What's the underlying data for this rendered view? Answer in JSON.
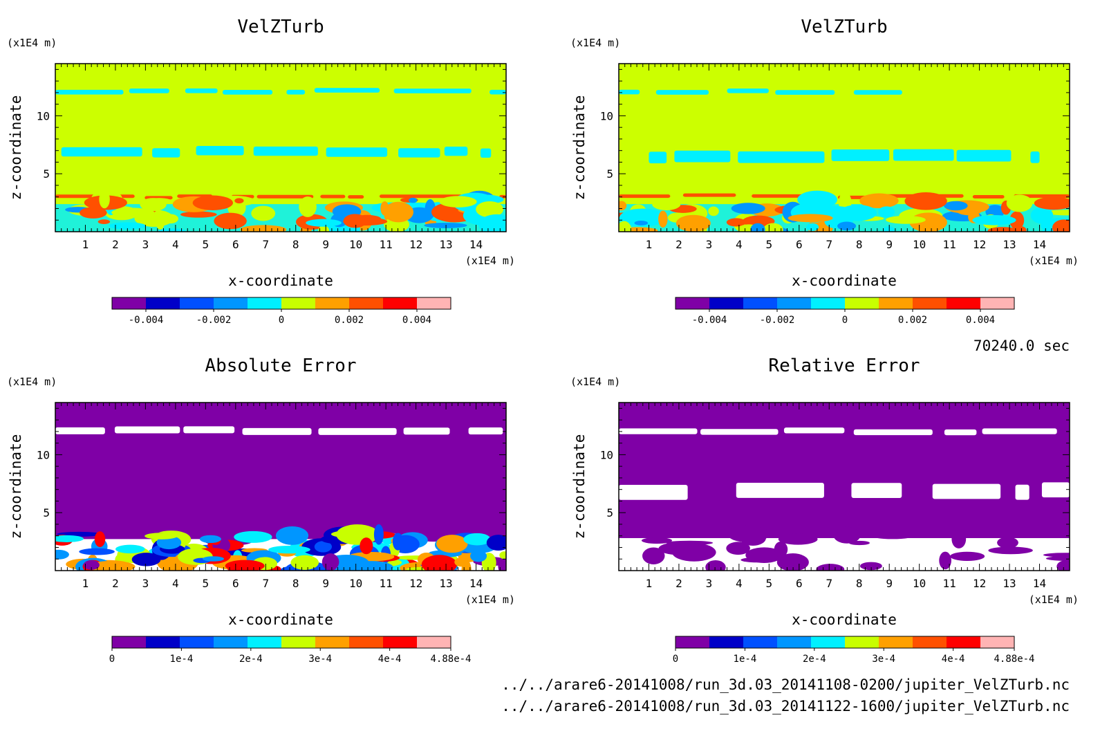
{
  "chart_data": [
    {
      "type": "heatmap",
      "title": "VelZTurb",
      "xlabel": "x-coordinate",
      "ylabel": "z-coordinate",
      "x_unit": "(x1E4 m)",
      "y_unit": "(x1E4 m)",
      "xlim": [
        0,
        15
      ],
      "ylim": [
        0,
        14.5
      ],
      "x_ticks": [
        "1",
        "2",
        "3",
        "4",
        "5",
        "6",
        "7",
        "8",
        "9",
        "10",
        "11",
        "12",
        "13",
        "14"
      ],
      "y_ticks": [
        "5",
        "10"
      ],
      "colorbar": {
        "levels": [
          -0.005,
          -0.004,
          -0.003,
          -0.002,
          -0.001,
          0,
          0.001,
          0.002,
          0.003,
          0.004,
          0.005
        ],
        "colors": [
          "#7f00a6",
          "#0000c8",
          "#0050ff",
          "#0096ff",
          "#00f0ff",
          "#c8ff00",
          "#ffa000",
          "#ff5000",
          "#ff0000",
          "#ffb4b4"
        ],
        "tick_values": [
          -0.004,
          -0.002,
          0,
          0.002,
          0.004
        ],
        "tick_labels": [
          "-0.004",
          "-0.002",
          "0",
          "0.002",
          "0.004"
        ]
      },
      "field": {
        "background": "#ccff00",
        "regions": [
          {
            "desc": "thin negative layer near top",
            "x": [
              0,
              15
            ],
            "z": [
              11.9,
              12.3
            ],
            "color": "#00f0ff"
          },
          {
            "desc": "patchy negative layer",
            "x": [
              0.2,
              14.5
            ],
            "z": [
              6.5,
              7.3
            ],
            "color": "#00f0ff"
          },
          {
            "desc": "positive band",
            "x": [
              0,
              15
            ],
            "z": [
              2.9,
              3.2
            ],
            "color": "#ff5000"
          },
          {
            "desc": "turbulent negative lower layer",
            "x": [
              0,
              15
            ],
            "z": [
              0,
              2.8
            ],
            "color": "#00f0ff"
          }
        ]
      }
    },
    {
      "type": "heatmap",
      "title": "VelZTurb",
      "xlabel": "x-coordinate",
      "ylabel": "z-coordinate",
      "x_unit": "(x1E4 m)",
      "y_unit": "(x1E4 m)",
      "xlim": [
        0,
        15
      ],
      "ylim": [
        0,
        14.5
      ],
      "x_ticks": [
        "1",
        "2",
        "3",
        "4",
        "5",
        "6",
        "7",
        "8",
        "9",
        "10",
        "11",
        "12",
        "13",
        "14"
      ],
      "y_ticks": [
        "5",
        "10"
      ],
      "colorbar": {
        "levels": [
          -0.005,
          -0.004,
          -0.003,
          -0.002,
          -0.001,
          0,
          0.001,
          0.002,
          0.003,
          0.004,
          0.005
        ],
        "colors": [
          "#7f00a6",
          "#0000c8",
          "#0050ff",
          "#0096ff",
          "#00f0ff",
          "#c8ff00",
          "#ffa000",
          "#ff5000",
          "#ff0000",
          "#ffb4b4"
        ],
        "tick_values": [
          -0.004,
          -0.002,
          0,
          0.002,
          0.004
        ],
        "tick_labels": [
          "-0.004",
          "-0.002",
          "0",
          "0.002",
          "0.004"
        ]
      },
      "field": {
        "background": "#ccff00",
        "regions": [
          {
            "desc": "thin layer near top",
            "x": [
              0,
              9.5
            ],
            "z": [
              11.9,
              12.3
            ],
            "color": "#00f0ff"
          },
          {
            "desc": "patches mid",
            "x": [
              1,
              14
            ],
            "z": [
              6,
              7
            ],
            "color": "#00f0ff"
          },
          {
            "desc": "positive band",
            "x": [
              0,
              15
            ],
            "z": [
              2.9,
              3.2
            ],
            "color": "#ff5000"
          },
          {
            "desc": "turbulent lower layer",
            "x": [
              0,
              15
            ],
            "z": [
              0,
              2.8
            ],
            "color": "#00f0ff"
          }
        ]
      }
    },
    {
      "type": "heatmap",
      "title": "Absolute Error",
      "xlabel": "x-coordinate",
      "ylabel": "z-coordinate",
      "x_unit": "(x1E4 m)",
      "y_unit": "(x1E4 m)",
      "xlim": [
        0,
        15
      ],
      "ylim": [
        0,
        14.5
      ],
      "x_ticks": [
        "1",
        "2",
        "3",
        "4",
        "5",
        "6",
        "7",
        "8",
        "9",
        "10",
        "11",
        "12",
        "13",
        "14"
      ],
      "y_ticks": [
        "5",
        "10"
      ],
      "colorbar": {
        "levels": [
          0,
          4.88e-05,
          9.76e-05,
          0.0001464,
          0.0001952,
          0.000244,
          0.0002928,
          0.0003416,
          0.0003904,
          0.0004392,
          0.000488
        ],
        "colors": [
          "#7f00a6",
          "#0000c8",
          "#0050ff",
          "#0096ff",
          "#00f0ff",
          "#c8ff00",
          "#ffa000",
          "#ff5000",
          "#ff0000",
          "#ffb4b4"
        ],
        "tick_values": [
          0,
          0.0001,
          0.0002,
          0.0003,
          0.0004,
          0.000488
        ],
        "tick_labels": [
          "0",
          "1e-4",
          "2e-4",
          "3e-4",
          "4e-4",
          "4.88e-4"
        ]
      },
      "field": {
        "background": "#7f00a6",
        "regions": [
          {
            "desc": "error layer near top",
            "x": [
              0,
              15
            ],
            "z": [
              11.8,
              12.4
            ],
            "color": "#ffffff"
          },
          {
            "desc": "large error lower layer",
            "x": [
              0,
              15
            ],
            "z": [
              0,
              3.2
            ],
            "color": "#ffffff"
          }
        ]
      }
    },
    {
      "type": "heatmap",
      "title": "Relative Error",
      "xlabel": "x-coordinate",
      "ylabel": "z-coordinate",
      "x_unit": "(x1E4 m)",
      "y_unit": "(x1E4 m)",
      "xlim": [
        0,
        15
      ],
      "ylim": [
        0,
        14.5
      ],
      "x_ticks": [
        "1",
        "2",
        "3",
        "4",
        "5",
        "6",
        "7",
        "8",
        "9",
        "10",
        "11",
        "12",
        "13",
        "14"
      ],
      "y_ticks": [
        "5",
        "10"
      ],
      "colorbar": {
        "levels": [
          0,
          4.88e-05,
          9.76e-05,
          0.0001464,
          0.0001952,
          0.000244,
          0.0002928,
          0.0003416,
          0.0003904,
          0.0004392,
          0.000488
        ],
        "colors": [
          "#7f00a6",
          "#0000c8",
          "#0050ff",
          "#0096ff",
          "#00f0ff",
          "#c8ff00",
          "#ffa000",
          "#ff5000",
          "#ff0000",
          "#ffb4b4"
        ],
        "tick_values": [
          0,
          0.0001,
          0.0002,
          0.0003,
          0.0004,
          0.000488
        ],
        "tick_labels": [
          "0",
          "1e-4",
          "2e-4",
          "3e-4",
          "4e-4",
          "4.88e-4"
        ]
      },
      "field": {
        "background": "#7f00a6",
        "regions": [
          {
            "desc": "white band near top",
            "x": [
              0,
              15
            ],
            "z": [
              11.8,
              12.3
            ],
            "color": "#ffffff"
          },
          {
            "desc": "white patches mid",
            "x": [
              0,
              15
            ],
            "z": [
              6.2,
              7.5
            ],
            "color": "#ffffff"
          },
          {
            "desc": "white lower layer",
            "x": [
              0,
              15
            ],
            "z": [
              0,
              3.3
            ],
            "color": "#ffffff"
          }
        ]
      }
    }
  ],
  "info": {
    "time": "70240.0 sec",
    "file1": "../../arare6-20141008/run_3d.03_20141108-0200/jupiter_VelZTurb.nc",
    "file2": "../../arare6-20141008/run_3d.03_20141122-1600/jupiter_VelZTurb.nc"
  }
}
